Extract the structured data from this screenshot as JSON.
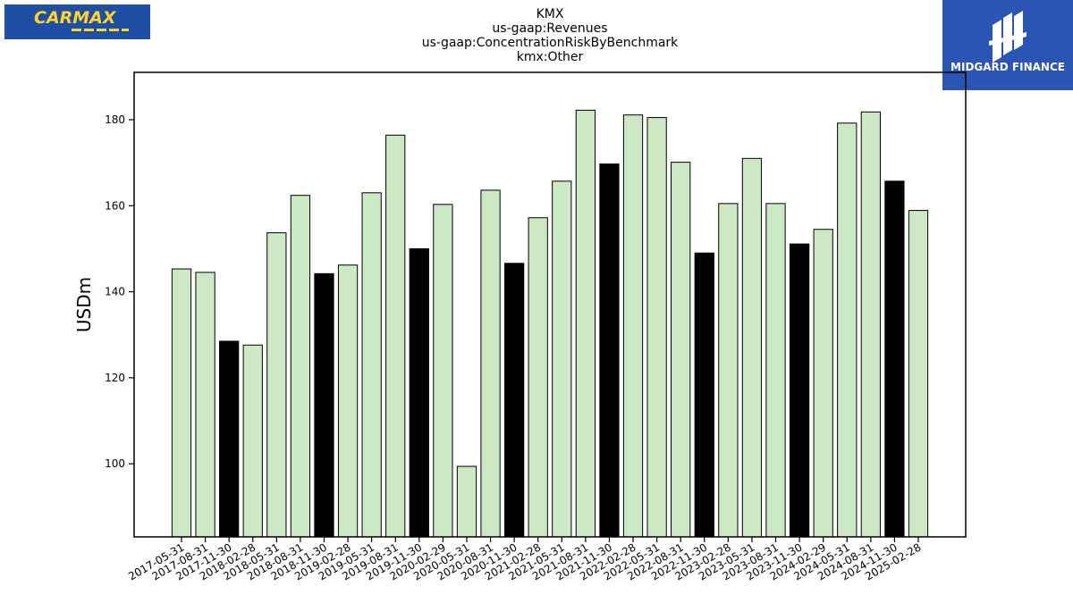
{
  "logos": {
    "left": {
      "text": "CARMAX",
      "colors": {
        "background": "#1f4fa5",
        "text": "#ffd42a"
      }
    },
    "right": {
      "text": "MIDGARD FINANCE",
      "colors": {
        "background": "#2a55b3",
        "text": "#ffffff"
      }
    }
  },
  "chart_data": {
    "type": "bar",
    "title_lines": [
      "KMX",
      "us-gaap:Revenues",
      "us-gaap:ConcentrationRiskByBenchmark",
      "kmx:Other"
    ],
    "xlabel": "",
    "ylabel": "USDm",
    "ylim": [
      83,
      191
    ],
    "yticks": [
      100,
      120,
      140,
      160,
      180
    ],
    "grid": false,
    "legend": "none",
    "colors": {
      "default": "#cce8c4",
      "highlight": "#000000",
      "edge": "#000000"
    },
    "categories": [
      "2017-05-31",
      "2017-08-31",
      "2017-11-30",
      "2018-02-28",
      "2018-05-31",
      "2018-08-31",
      "2018-11-30",
      "2019-02-28",
      "2019-05-31",
      "2019-08-31",
      "2019-11-30",
      "2020-02-29",
      "2020-05-31",
      "2020-08-31",
      "2020-11-30",
      "2021-02-28",
      "2021-05-31",
      "2021-08-31",
      "2021-11-30",
      "2022-02-28",
      "2022-05-31",
      "2022-08-31",
      "2022-11-30",
      "2023-02-28",
      "2023-05-31",
      "2023-08-31",
      "2023-11-30",
      "2024-02-29",
      "2024-05-31",
      "2024-08-31",
      "2024-11-30",
      "2025-02-28"
    ],
    "values": [
      145.3,
      144.5,
      128.5,
      127.6,
      153.7,
      162.4,
      144.2,
      146.2,
      163.0,
      176.4,
      150.0,
      160.3,
      99.4,
      163.6,
      146.6,
      157.2,
      165.7,
      182.2,
      169.7,
      181.1,
      180.5,
      170.1,
      149.0,
      160.5,
      171.0,
      160.5,
      151.1,
      154.5,
      179.2,
      181.8,
      165.7,
      158.9
    ],
    "highlight": [
      false,
      false,
      true,
      false,
      false,
      false,
      true,
      false,
      false,
      false,
      true,
      false,
      false,
      false,
      true,
      false,
      false,
      false,
      true,
      false,
      false,
      false,
      true,
      false,
      false,
      false,
      true,
      false,
      false,
      false,
      true,
      false
    ]
  }
}
